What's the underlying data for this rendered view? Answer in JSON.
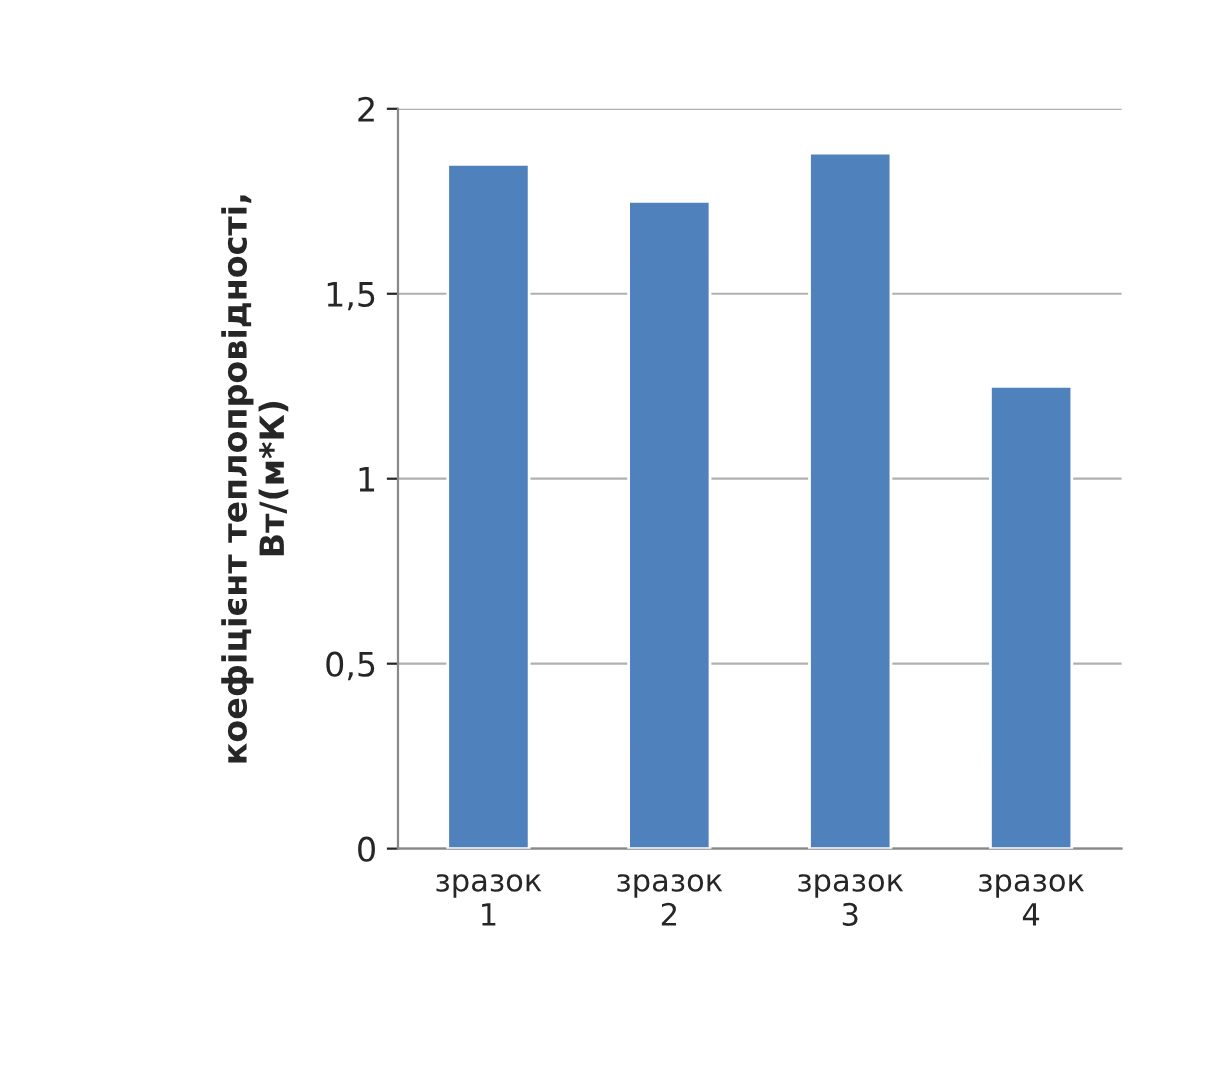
{
  "chart_data": {
    "type": "bar",
    "ylabel": "коефіцієнт теплопровідності,\nВт/(м*К)",
    "categories": [
      "зразок\n1",
      "зразок\n2",
      "зразок\n3",
      "зразок\n4"
    ],
    "values": [
      1.85,
      1.75,
      1.88,
      1.25
    ],
    "color": "#4f81bd",
    "ylim": [
      0,
      2
    ],
    "yticks": [
      {
        "value": 0,
        "label": "0"
      },
      {
        "value": 0.5,
        "label": "0,5"
      },
      {
        "value": 1,
        "label": "1"
      },
      {
        "value": 1.5,
        "label": "1,5"
      },
      {
        "value": 2,
        "label": "2"
      }
    ],
    "grid": "y"
  }
}
